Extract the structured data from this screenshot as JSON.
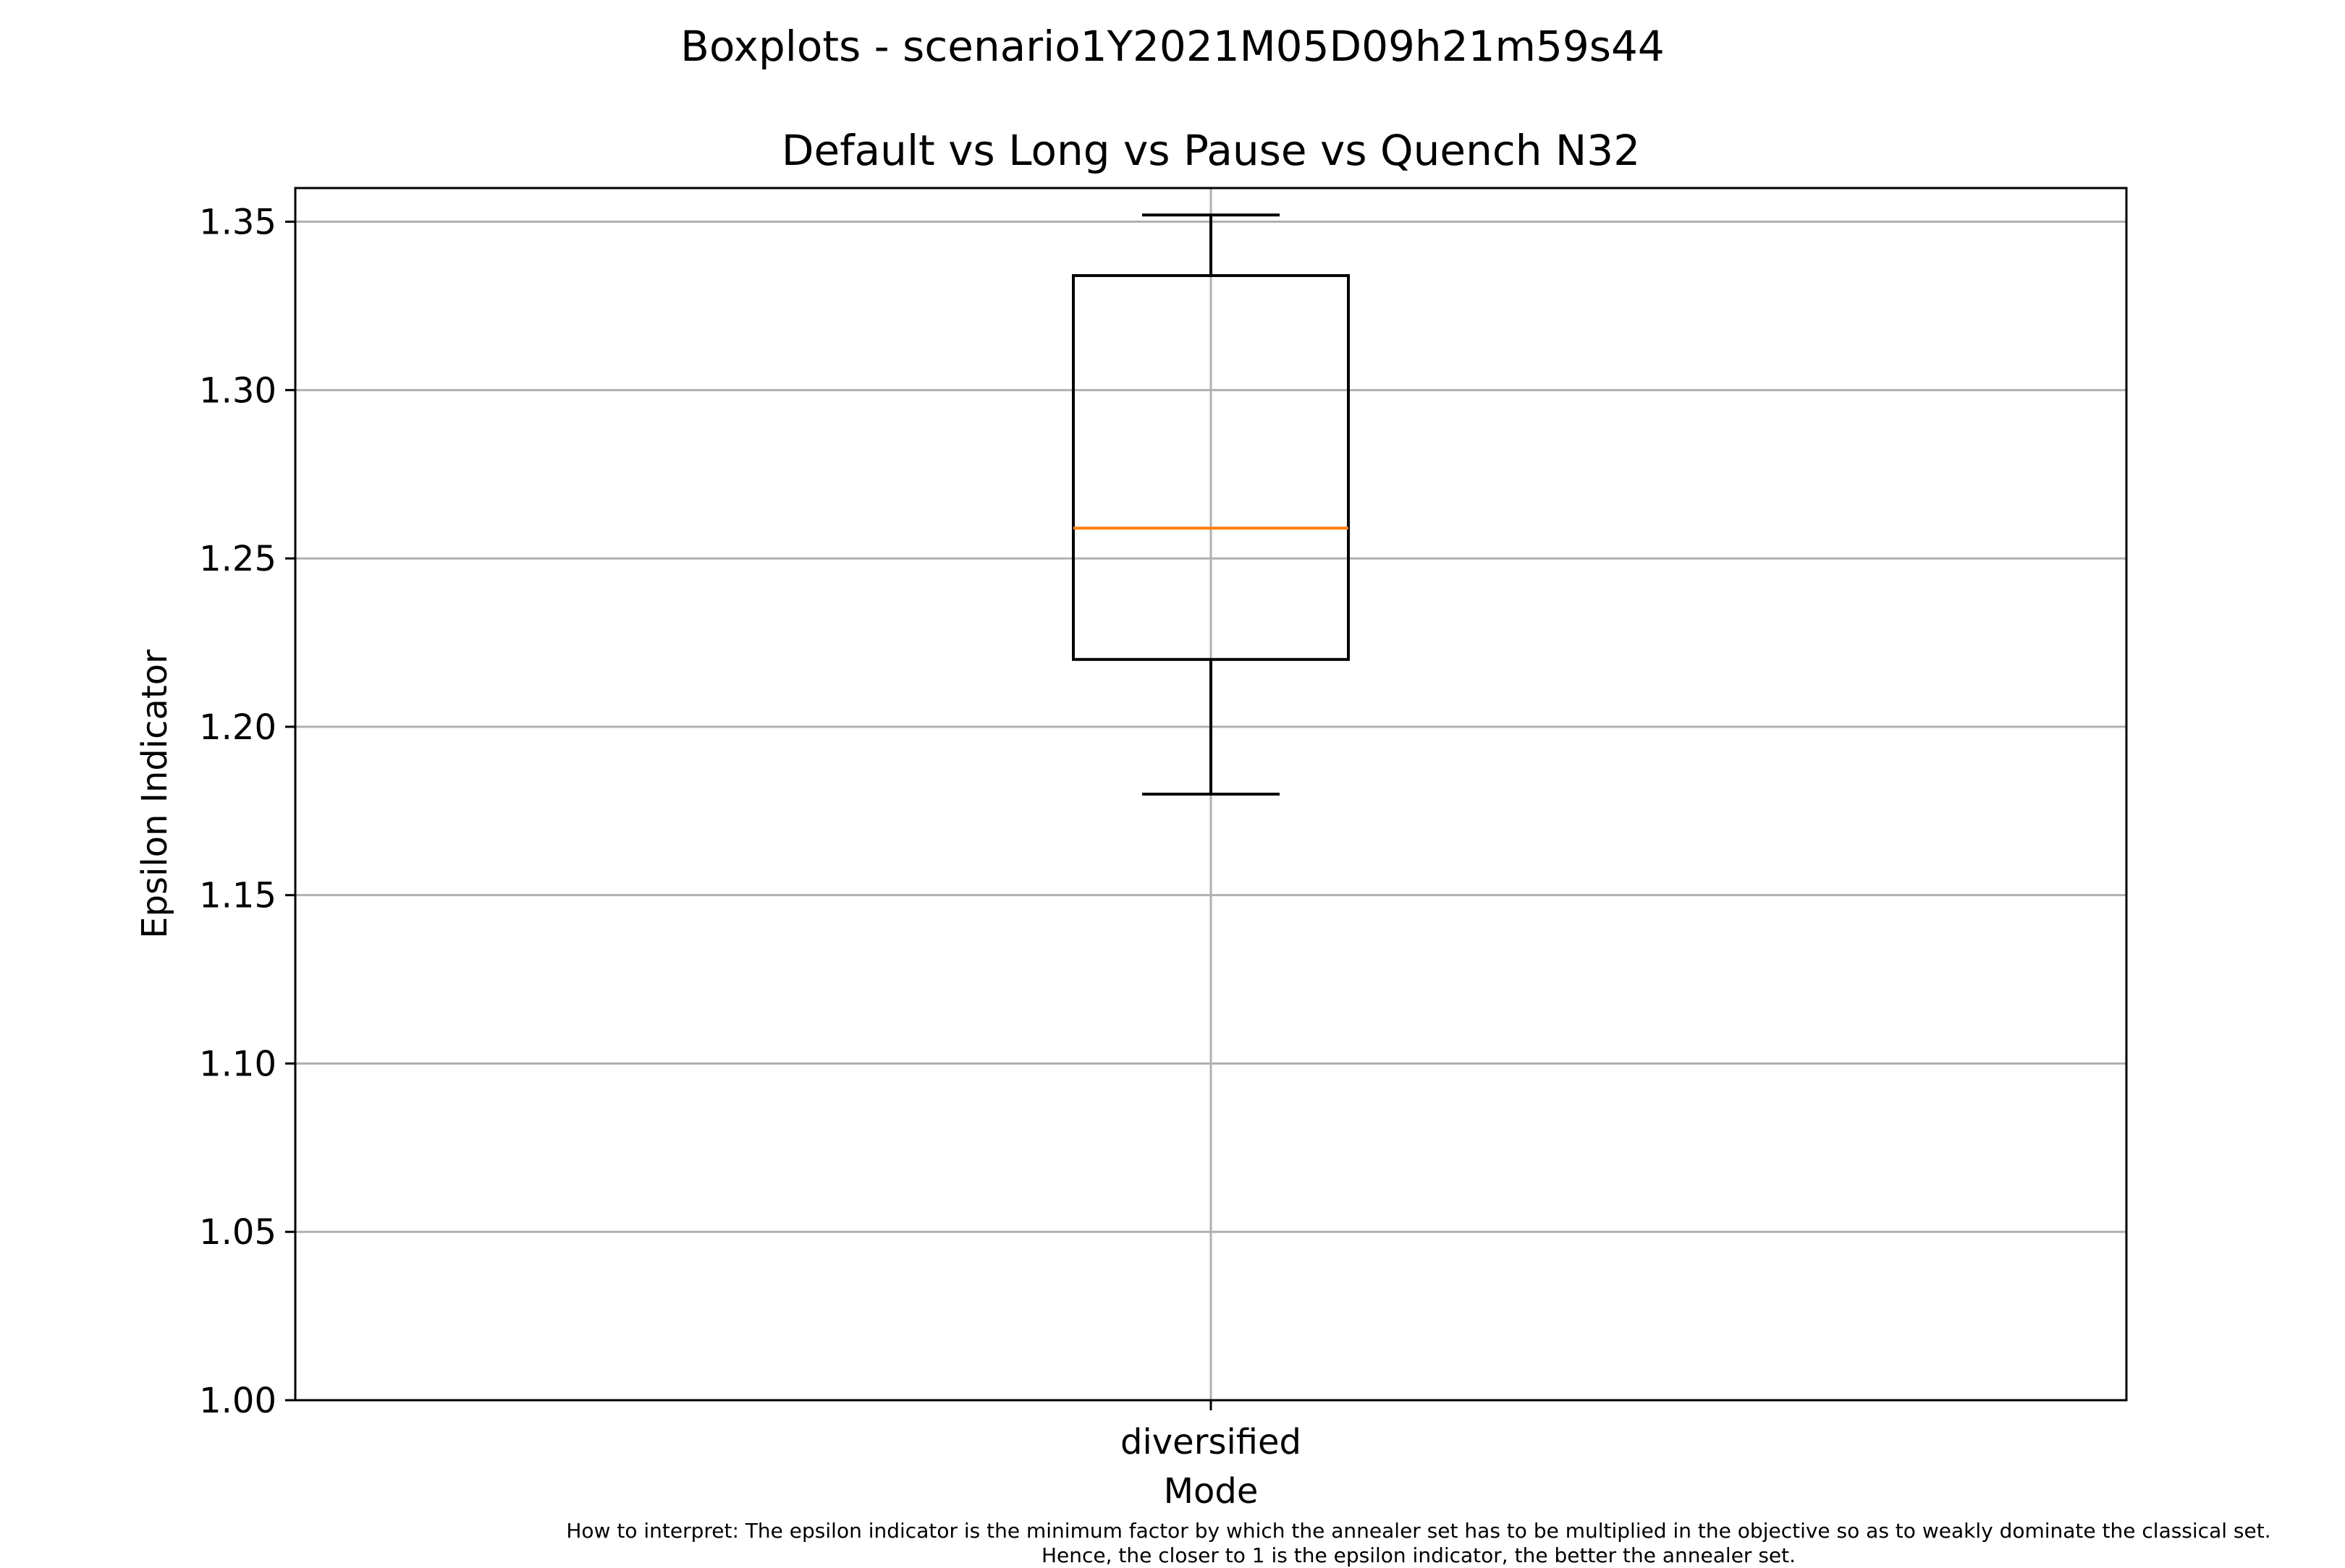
{
  "suptitle": "Boxplots - scenario1Y2021M05D09h21m59s44",
  "footnote": {
    "line1": "How to interpret: The epsilon indicator is the minimum factor by which the annealer set has to be multiplied in the objective so as to weakly dominate the classical set.",
    "line2": "Hence, the closer to 1 is the epsilon indicator, the better the annealer set."
  },
  "chart_data": {
    "type": "boxplot",
    "title": "Default vs Long vs Pause vs Quench N32",
    "xlabel": "Mode",
    "ylabel": "Epsilon Indicator",
    "ylim": [
      1.0,
      1.36
    ],
    "yticks": [
      "1.00",
      "1.05",
      "1.10",
      "1.15",
      "1.20",
      "1.25",
      "1.30",
      "1.35"
    ],
    "grid": true,
    "categories": [
      "diversified"
    ],
    "boxes": [
      {
        "label": "diversified",
        "whisker_low": 1.18,
        "q1": 1.22,
        "median": 1.259,
        "q3": 1.334,
        "whisker_high": 1.352
      }
    ],
    "colors": {
      "median": "#ff7f0e",
      "box": "#000000",
      "grid": "#b0b0b0"
    }
  }
}
